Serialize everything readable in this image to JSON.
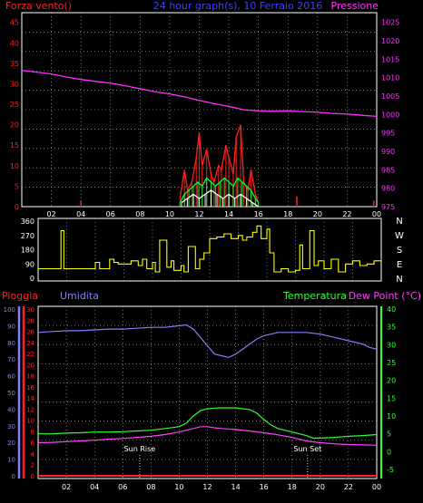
{
  "colors": {
    "background": "#000000",
    "frame": "#ffffff",
    "grid": "#c0c0c0",
    "wind_speed": "#ff2020",
    "wind_gust": "#ffffff",
    "wind_avg": "#00ff30",
    "pressure": "#ff30ff",
    "title": "#3a40ff",
    "wind_dir": "#ffff00",
    "rain": "#ff2020",
    "humidity": "#8080ff",
    "temperature": "#30ff30",
    "dew_point": "#ff40ff",
    "marker": "#ffffff"
  },
  "chart_data": [
    {
      "type": "line",
      "panel": "wind-pressure",
      "title": "24 hour graph(s), 10 Ferraio 2016",
      "left_axis_label": "Forza vento()",
      "right_axis_label": "Pressione",
      "left_ticks": [
        "0",
        "5",
        "10",
        "15",
        "20",
        "25",
        "30",
        "35",
        "40",
        "45"
      ],
      "left_range": [
        0,
        45
      ],
      "right_ticks": [
        "975",
        "980",
        "985",
        "990",
        "995",
        "1000",
        "1005",
        "1010",
        "1015",
        "1020",
        "1025"
      ],
      "right_range": [
        975,
        1025
      ],
      "x_ticks": [
        "02",
        "04",
        "06",
        "08",
        "10",
        "12",
        "14",
        "16",
        "18",
        "20",
        "22",
        "00"
      ],
      "x_range": [
        0,
        24
      ],
      "grid": true,
      "series": [
        {
          "name": "Pressione",
          "axis": "right",
          "x": [
            0,
            1,
            2,
            3,
            4,
            5,
            6,
            7,
            8,
            9,
            10,
            11,
            12,
            13,
            14,
            15,
            16,
            17,
            18,
            19,
            20,
            21,
            22,
            23,
            24
          ],
          "y": [
            1012,
            1011.5,
            1011,
            1010.2,
            1009.5,
            1009,
            1008.5,
            1007.8,
            1007,
            1006.2,
            1005.6,
            1004.8,
            1003.8,
            1003,
            1002.2,
            1001.3,
            1001,
            1000.9,
            1001,
            1000.8,
            1000.6,
            1000.3,
            1000.1,
            999.8,
            999.5
          ]
        },
        {
          "name": "Wind speed",
          "axis": "left",
          "x": [
            10.7,
            11.0,
            11.2,
            11.5,
            11.8,
            12.0,
            12.2,
            12.5,
            12.8,
            13.0,
            13.3,
            13.5,
            13.8,
            14.0,
            14.3,
            14.5,
            14.8,
            15.0,
            15.3,
            15.5,
            15.8,
            16.0
          ],
          "y": [
            2,
            9,
            4,
            6,
            12,
            18,
            10,
            14,
            8,
            6,
            10,
            9,
            15,
            12,
            8,
            17,
            20,
            6,
            4,
            9,
            3,
            1
          ]
        },
        {
          "name": "Wind avg",
          "axis": "left",
          "x": [
            10.7,
            11.0,
            11.3,
            11.6,
            11.9,
            12.2,
            12.5,
            12.8,
            13.1,
            13.4,
            13.7,
            14.0,
            14.3,
            14.6,
            14.9,
            15.2,
            15.5,
            15.8,
            16.0
          ],
          "y": [
            1,
            3,
            4,
            5,
            6,
            5,
            7,
            6,
            5,
            6,
            7,
            6,
            5,
            7,
            6,
            5,
            4,
            2,
            1
          ]
        },
        {
          "name": "Wind gust",
          "axis": "left",
          "x": [
            10.8,
            11.2,
            11.6,
            12.0,
            12.4,
            12.8,
            13.2,
            13.6,
            14.0,
            14.4,
            14.8,
            15.2,
            15.6,
            16.0
          ],
          "y": [
            1,
            2,
            3,
            2,
            3,
            4,
            3,
            2,
            3,
            2,
            3,
            2,
            1,
            0
          ]
        }
      ],
      "spikes": [
        {
          "x": 4.0,
          "y": 1.5
        },
        {
          "x": 18.6,
          "y": 2.5
        },
        {
          "x": 23.8,
          "y": 1.5
        }
      ]
    },
    {
      "type": "line",
      "panel": "wind-direction",
      "left_ticks": [
        "0",
        "90",
        "180",
        "270",
        "360"
      ],
      "left_range": [
        0,
        360
      ],
      "right_labels": [
        "N",
        "W",
        "S",
        "E",
        "N"
      ],
      "x_range": [
        0,
        24
      ],
      "series": [
        {
          "name": "Direction",
          "x": [
            0,
            0.5,
            1,
            1.4,
            1.6,
            1.8,
            2,
            2.5,
            3,
            3.2,
            3.5,
            4,
            4.3,
            4.6,
            5,
            5.3,
            5.6,
            6,
            6.5,
            7,
            7.3,
            7.6,
            8,
            8.2,
            8.5,
            9,
            9.3,
            9.5,
            10,
            10.2,
            10.5,
            11,
            11.3,
            11.6,
            12,
            12.5,
            13,
            13.5,
            14,
            14.3,
            14.6,
            15,
            15.3,
            15.6,
            16,
            16.2,
            16.5,
            17,
            17.5,
            18,
            18.3,
            18.5,
            19,
            19.3,
            19.6,
            20,
            20.5,
            21,
            21.5,
            22,
            22.5,
            23,
            23.5,
            24
          ],
          "y": [
            60,
            60,
            60,
            60,
            300,
            60,
            60,
            60,
            60,
            60,
            60,
            100,
            60,
            60,
            120,
            100,
            90,
            90,
            110,
            80,
            120,
            60,
            100,
            40,
            240,
            70,
            110,
            50,
            80,
            40,
            200,
            60,
            120,
            160,
            250,
            260,
            280,
            250,
            270,
            240,
            260,
            290,
            330,
            250,
            310,
            160,
            40,
            60,
            40,
            50,
            210,
            60,
            300,
            80,
            110,
            60,
            120,
            40,
            90,
            110,
            80,
            90,
            110,
            100
          ]
        }
      ]
    },
    {
      "type": "line",
      "panel": "temp-humidity",
      "labels": {
        "rain": "Pioggia",
        "humidity": "Umidita",
        "temperature": "Temperatura",
        "dew_point": "Dew Point (°C)"
      },
      "humidity_ticks": [
        "0",
        "10",
        "20",
        "30",
        "40",
        "50",
        "60",
        "70",
        "80",
        "90",
        "100"
      ],
      "rain_ticks": [
        "0",
        "2",
        "4",
        "6",
        "8",
        "10",
        "12",
        "14",
        "16",
        "18",
        "20",
        "22",
        "24",
        "26",
        "28",
        "30"
      ],
      "temp_ticks": [
        "-5",
        "0",
        "5",
        "10",
        "15",
        "20",
        "25",
        "30",
        "35",
        "40"
      ],
      "temp_range": [
        -5,
        40
      ],
      "x_ticks": [
        "02",
        "04",
        "06",
        "08",
        "10",
        "12",
        "14",
        "16",
        "18",
        "20",
        "22",
        "00"
      ],
      "x_range": [
        0,
        24
      ],
      "markers": [
        {
          "x": 7.2,
          "label": "Sun Rise"
        },
        {
          "x": 19.1,
          "label": "Sun Set"
        }
      ],
      "series": [
        {
          "name": "Umidita",
          "axis": "humidity",
          "x": [
            0,
            1,
            2,
            3,
            4,
            5,
            6,
            7,
            8,
            9,
            10,
            10.5,
            11,
            11.5,
            12,
            12.5,
            13,
            13.5,
            14,
            14.5,
            15,
            15.5,
            16,
            17,
            18,
            19,
            20,
            21,
            22,
            23,
            23.5,
            24
          ],
          "y": [
            86,
            86.5,
            87,
            87,
            87.5,
            88,
            88,
            88.5,
            89,
            89,
            90,
            90.5,
            88,
            83,
            78,
            73,
            72,
            71,
            73,
            76,
            79,
            82,
            84,
            86,
            86,
            86,
            85,
            83,
            81,
            79,
            77,
            76
          ]
        },
        {
          "name": "Temperatura",
          "axis": "temp",
          "x": [
            0,
            1,
            2,
            3,
            4,
            5,
            6,
            7,
            8,
            9,
            10,
            10.5,
            11,
            11.5,
            12,
            12.5,
            13,
            14,
            15,
            15.5,
            16,
            16.5,
            17,
            18,
            19,
            19.5,
            20,
            21,
            22,
            23,
            24
          ],
          "y": [
            5,
            5,
            5.2,
            5.3,
            5.5,
            5.5,
            5.6,
            5.8,
            6,
            6.5,
            7,
            8,
            10,
            11.5,
            12,
            12.2,
            12.3,
            12.3,
            11.8,
            10.8,
            9,
            7.5,
            6.5,
            5.5,
            4.5,
            3.8,
            3.8,
            4,
            4.3,
            4.5,
            4.8
          ]
        },
        {
          "name": "Dew Point",
          "axis": "temp",
          "x": [
            0,
            1,
            2,
            3,
            4,
            5,
            6,
            7,
            8,
            9,
            10,
            10.5,
            11,
            11.5,
            12,
            12.5,
            13,
            14,
            15,
            16,
            17,
            18,
            19,
            20,
            21,
            22,
            23,
            24
          ],
          "y": [
            2.5,
            2.6,
            2.8,
            3,
            3.2,
            3.5,
            3.7,
            4,
            4.3,
            4.8,
            5.5,
            6,
            6.5,
            7,
            7,
            6.7,
            6.5,
            6.2,
            5.8,
            5.3,
            4.7,
            4,
            3,
            2.5,
            2.2,
            2,
            1.9,
            1.8
          ]
        },
        {
          "name": "Pioggia",
          "axis": "rain",
          "x": [
            0,
            24
          ],
          "y": [
            0,
            0
          ]
        }
      ]
    }
  ]
}
